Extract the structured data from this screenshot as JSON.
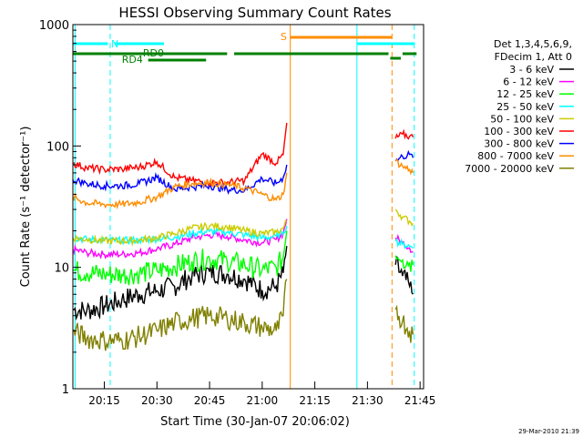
{
  "chart_data": {
    "type": "line",
    "title": "HESSI Observing Summary Count Rates",
    "xlabel": "Start Time (30-Jan-07 20:06:02)",
    "ylabel": "Count Rate (s⁻¹ detector⁻¹)",
    "x_unit": "time of day on 30-Jan-2007",
    "yscale": "log",
    "xlim": [
      "20:06:02",
      "21:46:00"
    ],
    "ylim": [
      1,
      1000
    ],
    "x_ticks": [
      "20:15",
      "20:30",
      "20:45",
      "21:00",
      "21:15",
      "21:30",
      "21:45"
    ],
    "y_ticks": [
      "1",
      "10",
      "100",
      "1000"
    ],
    "legend_header": [
      "Det 1,3,4,5,6,9,",
      "FDecim 1, Att 0"
    ],
    "legend_position": "right",
    "series": [
      {
        "name": "3 - 6 keV",
        "color": "#000000",
        "x": [
          "20:06",
          "20:10",
          "20:15",
          "20:20",
          "20:25",
          "20:30",
          "20:35",
          "20:40",
          "20:45",
          "20:50",
          "20:55",
          "21:00",
          "21:04",
          "21:06",
          "21:07",
          "21:38",
          "21:40",
          "21:42",
          "21:43"
        ],
        "values": [
          4.5,
          4.4,
          4.8,
          5.4,
          6.0,
          6.4,
          7.0,
          8.5,
          9.2,
          8.8,
          8.0,
          6.5,
          7.0,
          9.0,
          15.0,
          10.5,
          8.5,
          7.0,
          6.0
        ]
      },
      {
        "name": "6 - 12 keV",
        "color": "#ff00ff",
        "x": [
          "20:06",
          "20:10",
          "20:15",
          "20:20",
          "20:25",
          "20:30",
          "20:35",
          "20:40",
          "20:45",
          "20:50",
          "20:55",
          "21:00",
          "21:04",
          "21:06",
          "21:07",
          "21:38",
          "21:40",
          "21:42",
          "21:43"
        ],
        "values": [
          14.0,
          13.2,
          12.8,
          12.8,
          13.2,
          14.2,
          15.5,
          17.5,
          18.5,
          18.0,
          16.8,
          16.0,
          17.0,
          19.0,
          25.0,
          17.5,
          16.0,
          14.5,
          13.5
        ]
      },
      {
        "name": "12 - 25 keV",
        "color": "#00ff00",
        "x": [
          "20:06",
          "20:10",
          "20:15",
          "20:20",
          "20:25",
          "20:30",
          "20:35",
          "20:40",
          "20:45",
          "20:50",
          "20:55",
          "21:00",
          "21:04",
          "21:06",
          "21:07",
          "21:38",
          "21:40",
          "21:42",
          "21:43"
        ],
        "values": [
          9.5,
          9.0,
          8.8,
          8.7,
          8.9,
          9.4,
          10.2,
          11.2,
          11.8,
          11.3,
          10.5,
          9.5,
          10.0,
          12.0,
          20.0,
          12.5,
          11.5,
          11.0,
          10.5
        ]
      },
      {
        "name": "25 - 50 keV",
        "color": "#00ffff",
        "x": [
          "20:06",
          "20:10",
          "20:15",
          "20:20",
          "20:25",
          "20:30",
          "20:35",
          "20:40",
          "20:45",
          "20:50",
          "20:55",
          "21:00",
          "21:04",
          "21:06",
          "21:07",
          "21:38",
          "21:40",
          "21:42",
          "21:43"
        ],
        "values": [
          17.5,
          17.0,
          16.8,
          16.6,
          16.8,
          17.2,
          17.8,
          19.0,
          19.8,
          19.5,
          18.5,
          17.5,
          18.0,
          19.5,
          22.0,
          16.5,
          15.5,
          15.0,
          14.5
        ]
      },
      {
        "name": "50 - 100 keV",
        "color": "#cccc00",
        "x": [
          "20:06",
          "20:10",
          "20:15",
          "20:20",
          "20:25",
          "20:30",
          "20:35",
          "20:40",
          "20:45",
          "20:50",
          "20:55",
          "21:00",
          "21:04",
          "21:06",
          "21:07",
          "21:38",
          "21:40",
          "21:42",
          "21:43"
        ],
        "values": [
          17.5,
          17.0,
          16.5,
          16.5,
          16.8,
          17.5,
          19.0,
          21.0,
          22.0,
          21.5,
          20.0,
          19.0,
          19.5,
          21.0,
          24.0,
          30.0,
          26.0,
          24.0,
          23.0
        ]
      },
      {
        "name": "100 - 300 keV",
        "color": "#ff0000",
        "x": [
          "20:06",
          "20:10",
          "20:15",
          "20:20",
          "20:25",
          "20:30",
          "20:35",
          "20:40",
          "20:45",
          "20:50",
          "20:55",
          "21:00",
          "21:04",
          "21:06",
          "21:07",
          "21:38",
          "21:40",
          "21:42",
          "21:43"
        ],
        "values": [
          72.0,
          66.0,
          64.0,
          64.5,
          67.0,
          74.0,
          55.0,
          52.0,
          50.0,
          50.0,
          52.0,
          86.0,
          72.0,
          85.0,
          155.0,
          115.0,
          125.0,
          120.0,
          118.0
        ]
      },
      {
        "name": "300 - 800 keV",
        "color": "#0000ff",
        "x": [
          "20:06",
          "20:10",
          "20:15",
          "20:20",
          "20:25",
          "20:30",
          "20:35",
          "20:40",
          "20:45",
          "20:50",
          "20:55",
          "21:00",
          "21:04",
          "21:06",
          "21:07",
          "21:38",
          "21:40",
          "21:42",
          "21:43"
        ],
        "values": [
          53.0,
          49.0,
          47.0,
          47.0,
          49.0,
          55.0,
          44.0,
          46.0,
          47.0,
          44.0,
          43.0,
          54.0,
          49.0,
          55.0,
          70.0,
          75.0,
          82.0,
          85.0,
          80.0
        ]
      },
      {
        "name": "800 - 7000 keV",
        "color": "#ff8c00",
        "x": [
          "20:06",
          "20:10",
          "20:15",
          "20:20",
          "20:25",
          "20:30",
          "20:35",
          "20:40",
          "20:45",
          "20:50",
          "20:55",
          "21:00",
          "21:04",
          "21:06",
          "21:07",
          "21:38",
          "21:40",
          "21:42",
          "21:43"
        ],
        "values": [
          38.0,
          34.0,
          33.0,
          33.0,
          34.5,
          38.0,
          46.0,
          49.0,
          50.0,
          48.0,
          45.0,
          40.0,
          36.0,
          40.0,
          60.0,
          75.0,
          68.0,
          64.0,
          60.0
        ]
      },
      {
        "name": "7000 - 20000 keV",
        "color": "#808000",
        "x": [
          "20:06",
          "20:10",
          "20:15",
          "20:20",
          "20:25",
          "20:30",
          "20:35",
          "20:40",
          "20:45",
          "20:50",
          "20:55",
          "21:00",
          "21:04",
          "21:06",
          "21:07",
          "21:38",
          "21:40",
          "21:42",
          "21:43"
        ],
        "values": [
          3.0,
          2.6,
          2.5,
          2.5,
          2.7,
          3.0,
          3.5,
          3.8,
          4.0,
          3.8,
          3.5,
          3.2,
          3.0,
          4.0,
          8.0,
          4.5,
          3.6,
          3.0,
          2.8
        ]
      }
    ],
    "annotations": [
      {
        "text": "N",
        "color": "#00ffff"
      },
      {
        "text": "RD0",
        "color": "#008000"
      },
      {
        "text": "RD4",
        "color": "#008000"
      },
      {
        "text": "S",
        "color": "#ff8c00"
      }
    ],
    "footer_timestamp": "29-Mar-2010 21:39"
  }
}
